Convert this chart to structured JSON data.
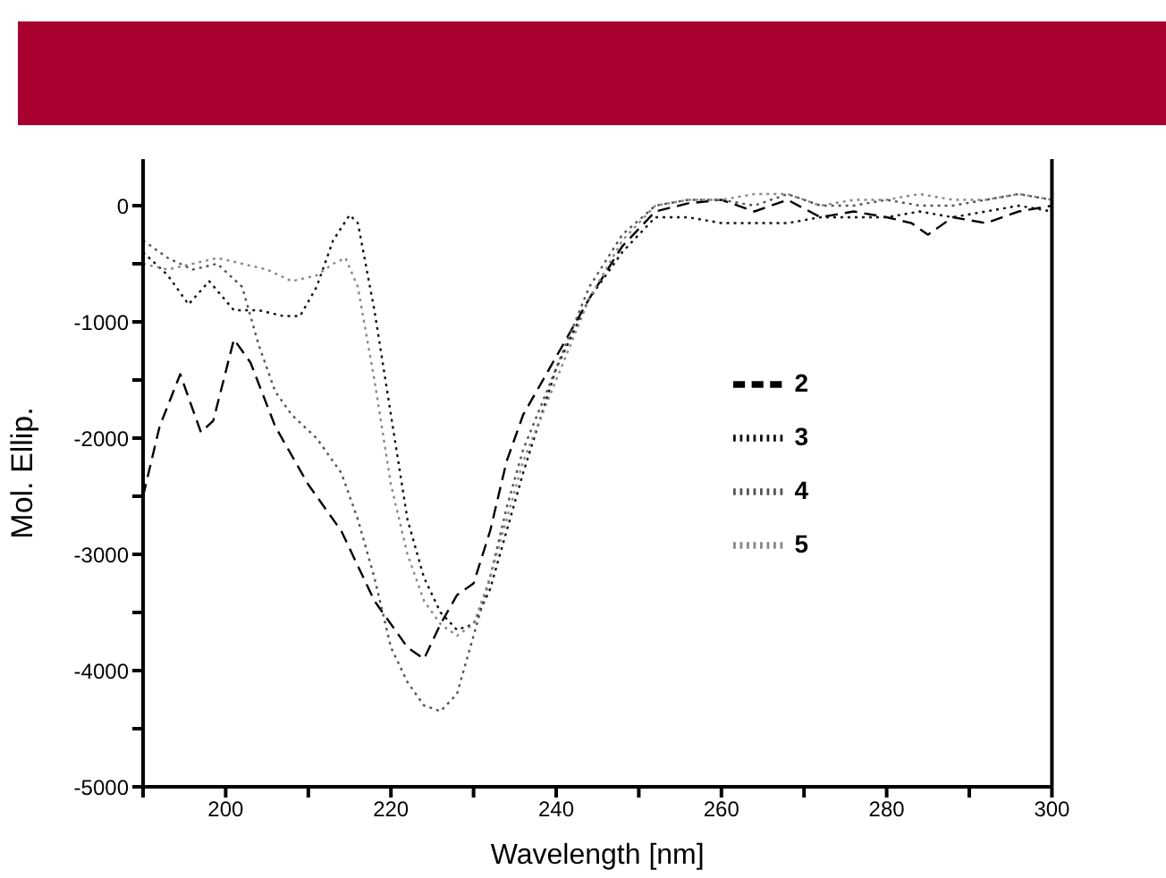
{
  "chart_data": {
    "type": "line",
    "xlabel": "Wavelength [nm]",
    "ylabel": "Mol. Ellip.",
    "xlim": [
      190,
      300
    ],
    "xticks": [
      {
        "value": 190,
        "label": null
      },
      200,
      {
        "value": 210,
        "label": null
      },
      220,
      {
        "value": 230,
        "label": null
      },
      240,
      {
        "value": 250,
        "label": null
      },
      260,
      {
        "value": 270,
        "label": null
      },
      280,
      {
        "value": 290,
        "label": null
      },
      300
    ],
    "ylim": [
      -5000,
      400
    ],
    "yticks": [
      -5000,
      {
        "value": -4500,
        "label": null
      },
      -4000,
      {
        "value": -3500,
        "label": null
      },
      -3000,
      {
        "value": -2500,
        "label": null
      },
      -2000,
      {
        "value": -1500,
        "label": null
      },
      -1000,
      {
        "value": -500,
        "label": null
      },
      0
    ],
    "grid": false,
    "legend": "right",
    "marker": "none",
    "series": [
      {
        "name": "2",
        "color": "#000000",
        "line_style": "dashed",
        "x": [
          190,
          192,
          194.5,
          197,
          198.5,
          201,
          203,
          206,
          210,
          214,
          218,
          222,
          224,
          226,
          228,
          230,
          232,
          234,
          236,
          240,
          244,
          248,
          252,
          256,
          260,
          264,
          268,
          272,
          276,
          280,
          283,
          285,
          288,
          292,
          296,
          300
        ],
        "values": [
          -2500,
          -1900,
          -1450,
          -1950,
          -1850,
          -1150,
          -1350,
          -1900,
          -2400,
          -2800,
          -3400,
          -3800,
          -3900,
          -3600,
          -3350,
          -3250,
          -2800,
          -2200,
          -1800,
          -1300,
          -800,
          -350,
          -50,
          20,
          50,
          -50,
          50,
          -100,
          -50,
          -100,
          -150,
          -250,
          -100,
          -150,
          -50,
          0
        ]
      },
      {
        "name": "3",
        "color": "#111111",
        "line_style": "dotted",
        "x": [
          190,
          193,
          195.5,
          198,
          201,
          204,
          207,
          209,
          211,
          213,
          215,
          216,
          218,
          220,
          222,
          224,
          226,
          228,
          230,
          232,
          234,
          236,
          240,
          244,
          248,
          252,
          256,
          260,
          264,
          268,
          272,
          276,
          280,
          284,
          288,
          292,
          296,
          300
        ],
        "values": [
          -400,
          -600,
          -850,
          -650,
          -900,
          -900,
          -950,
          -950,
          -700,
          -300,
          -80,
          -150,
          -900,
          -1800,
          -2700,
          -3200,
          -3500,
          -3650,
          -3600,
          -3300,
          -2800,
          -2300,
          -1400,
          -800,
          -400,
          -100,
          -100,
          -150,
          -150,
          -150,
          -100,
          -100,
          -100,
          -50,
          -100,
          -50,
          0,
          -50
        ]
      },
      {
        "name": "4",
        "color": "#555555",
        "line_style": "dotted",
        "x": [
          190,
          193,
          196,
          199,
          202,
          204,
          206,
          208,
          211,
          214,
          216,
          218,
          220,
          222,
          224,
          226,
          228,
          230,
          232,
          234,
          236,
          240,
          244,
          248,
          252,
          256,
          260,
          264,
          268,
          272,
          276,
          280,
          284,
          288,
          292,
          296,
          300
        ],
        "values": [
          -300,
          -450,
          -550,
          -500,
          -700,
          -1200,
          -1600,
          -1800,
          -2000,
          -2300,
          -2700,
          -3200,
          -3800,
          -4100,
          -4300,
          -4350,
          -4200,
          -3700,
          -3200,
          -2600,
          -2100,
          -1400,
          -700,
          -250,
          0,
          50,
          50,
          0,
          100,
          0,
          0,
          50,
          0,
          0,
          50,
          100,
          50
        ]
      },
      {
        "name": "5",
        "color": "#888888",
        "line_style": "dotted",
        "x": [
          190,
          193,
          196,
          199,
          202,
          205,
          208,
          211,
          213,
          214.5,
          216,
          218,
          220,
          222,
          224,
          226,
          228,
          230,
          232,
          234,
          236,
          240,
          244,
          248,
          252,
          256,
          260,
          264,
          268,
          272,
          276,
          280,
          284,
          288,
          292,
          296,
          300
        ],
        "values": [
          -500,
          -550,
          -500,
          -450,
          -500,
          -550,
          -650,
          -600,
          -500,
          -450,
          -700,
          -1500,
          -2400,
          -3000,
          -3400,
          -3600,
          -3700,
          -3600,
          -3200,
          -2700,
          -2200,
          -1500,
          -800,
          -300,
          0,
          50,
          50,
          100,
          100,
          0,
          50,
          50,
          100,
          50,
          50,
          100,
          50
        ]
      }
    ]
  }
}
